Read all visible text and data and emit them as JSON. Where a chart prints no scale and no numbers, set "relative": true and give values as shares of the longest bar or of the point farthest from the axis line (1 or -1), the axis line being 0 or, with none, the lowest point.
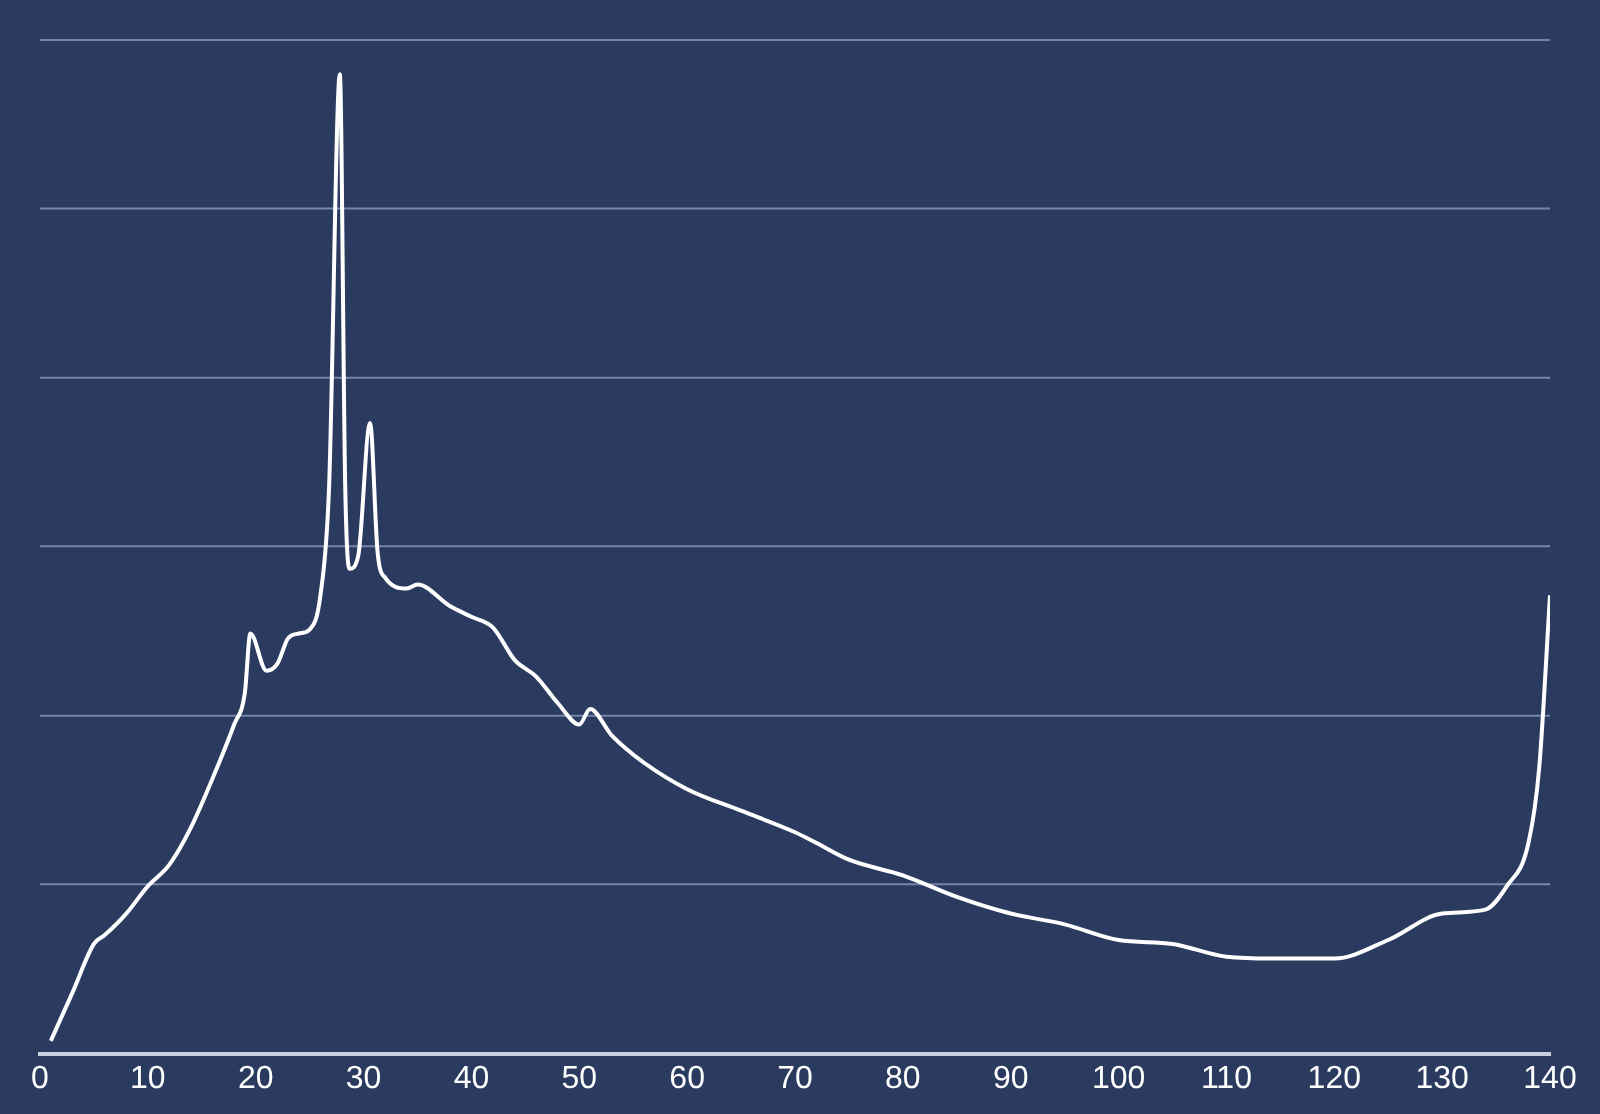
{
  "chart_data": {
    "type": "line",
    "relative": true,
    "x": [
      1,
      3,
      5,
      6,
      8,
      10,
      12,
      14,
      16,
      18,
      19,
      19.5,
      21,
      22,
      23,
      24,
      25,
      26,
      26.8,
      27.8,
      28.3,
      28.7,
      29.5,
      30.6,
      31.3,
      32,
      34,
      35,
      38,
      40,
      42,
      44,
      46,
      48,
      50,
      51,
      53,
      56,
      60,
      65,
      70,
      72,
      75,
      80,
      85,
      90,
      95,
      100,
      105,
      110,
      115,
      120,
      125,
      130,
      134,
      136,
      138,
      139,
      140
    ],
    "series": [
      {
        "color": "#ffffff",
        "values": [
          0.013,
          0.062,
          0.112,
          0.121,
          0.143,
          0.171,
          0.193,
          0.231,
          0.281,
          0.336,
          0.369,
          0.429,
          0.391,
          0.398,
          0.424,
          0.429,
          0.433,
          0.468,
          0.578,
          1,
          0.578,
          0.495,
          0.508,
          0.644,
          0.512,
          0.486,
          0.475,
          0.479,
          0.457,
          0.446,
          0.435,
          0.402,
          0.385,
          0.358,
          0.336,
          0.352,
          0.325,
          0.297,
          0.27,
          0.248,
          0.226,
          0.215,
          0.198,
          0.182,
          0.16,
          0.143,
          0.132,
          0.116,
          0.112,
          0.099,
          0.097,
          0.097,
          0.116,
          0.143,
          0.147,
          0.171,
          0.215,
          0.292,
          0.468
        ]
      }
    ],
    "xlim": [
      0,
      140
    ],
    "xticks": [
      0,
      10,
      20,
      30,
      40,
      50,
      60,
      70,
      80,
      90,
      100,
      110,
      120,
      130,
      140
    ],
    "ref_lines": [
      {
        "axis": "y",
        "value": 0.173,
        "color": "#7685a8"
      },
      {
        "axis": "y",
        "value": 0.345,
        "color": "#7685a8"
      },
      {
        "axis": "y",
        "value": 0.518,
        "color": "#7685a8"
      },
      {
        "axis": "y",
        "value": 0.69,
        "color": "#7685a8"
      },
      {
        "axis": "y",
        "value": 0.863,
        "color": "#7685a8"
      },
      {
        "axis": "y",
        "value": 1.035,
        "color": "#7685a8"
      }
    ],
    "marker": "none",
    "line_style": "solid",
    "legend": false
  }
}
